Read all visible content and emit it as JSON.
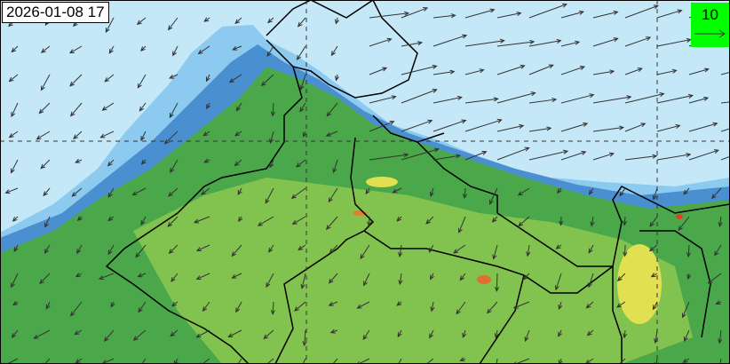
{
  "timestamp": "2026-01-08 17",
  "legend": {
    "reference_value": "10",
    "background_color": "#00ff00"
  },
  "colors": {
    "sea": "#c5e8f8",
    "land_low": "#4aa84a",
    "land_mid": "#8cc850",
    "land_high": "#e0e050",
    "peak": "#e04020",
    "coast_blue": "#4a8fd0",
    "light_blue": "#7ec0ea"
  }
}
